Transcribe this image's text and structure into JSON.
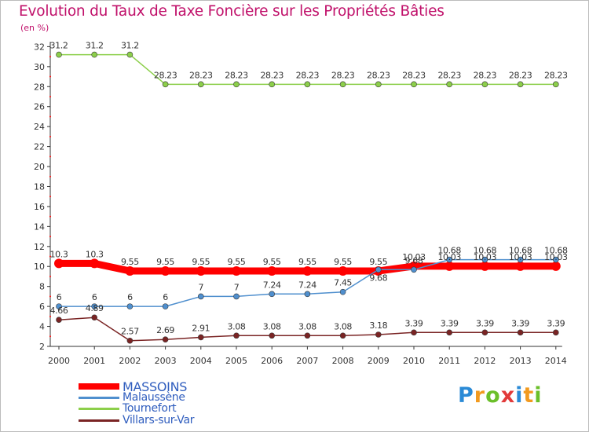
{
  "title": "Evolution du Taux de Taxe Foncière sur les Propriétés Bâties",
  "unit_label": "(en %)",
  "logo": {
    "text": "Proxiti",
    "letters": [
      "P",
      "r",
      "o",
      "x",
      "i",
      "t",
      "i"
    ],
    "colors": [
      "#2a8ad6",
      "#f29a1f",
      "#6bbf2a",
      "#e23a3a",
      "#2a8ad6",
      "#f29a1f",
      "#6bbf2a"
    ]
  },
  "chart_data": {
    "type": "line",
    "title": "Evolution du Taux de Taxe Foncière sur les Propriétés Bâties",
    "ylabel": "(en %)",
    "xlabel": "",
    "ylim": [
      2,
      32
    ],
    "yticks": [
      2,
      4,
      6,
      8,
      10,
      12,
      14,
      16,
      18,
      20,
      22,
      24,
      26,
      28,
      30,
      32
    ],
    "categories": [
      "2000",
      "2001",
      "2002",
      "2003",
      "2004",
      "2005",
      "2006",
      "2007",
      "2008",
      "2009",
      "2010",
      "2011",
      "2012",
      "2013",
      "2014"
    ],
    "grid": false,
    "legend_position": "bottom-left",
    "series": [
      {
        "name": "MASSOINS",
        "color": "#ff0000",
        "bold": true,
        "values": [
          10.3,
          10.3,
          9.55,
          9.55,
          9.55,
          9.55,
          9.55,
          9.55,
          9.55,
          9.55,
          10.03,
          10.03,
          10.03,
          10.03,
          10.03
        ],
        "labels": [
          "10.3",
          "10.3",
          "9.55",
          "9.55",
          "9.55",
          "9.55",
          "9.55",
          "9.55",
          "9.55",
          "9.55",
          "10.03",
          "10.03",
          "10.03",
          "10.03",
          "10.03"
        ]
      },
      {
        "name": "Malaussène",
        "color": "#4f8fce",
        "bold": false,
        "values": [
          6,
          6,
          6,
          6,
          7,
          7,
          7.24,
          7.24,
          7.45,
          9.68,
          9.68,
          10.68,
          10.68,
          10.68,
          10.68
        ],
        "labels": [
          "6",
          "6",
          "6",
          "6",
          "7",
          "7",
          "7.24",
          "7.24",
          "7.45",
          "9.68",
          "9.68",
          "10.68",
          "10.68",
          "10.68",
          "10.68"
        ]
      },
      {
        "name": "Tournefort",
        "color": "#8ccf4a",
        "bold": false,
        "values": [
          31.2,
          31.2,
          31.2,
          28.23,
          28.23,
          28.23,
          28.23,
          28.23,
          28.23,
          28.23,
          28.23,
          28.23,
          28.23,
          28.23,
          28.23
        ],
        "labels": [
          "31.2",
          "31.2",
          "31.2",
          "28.23",
          "28.23",
          "28.23",
          "28.23",
          "28.23",
          "28.23",
          "28.23",
          "28.23",
          "28.23",
          "28.23",
          "28.23",
          "28.23"
        ]
      },
      {
        "name": "Villars-sur-Var",
        "color": "#7a2424",
        "bold": false,
        "values": [
          4.66,
          4.89,
          2.57,
          2.69,
          2.91,
          3.08,
          3.08,
          3.08,
          3.08,
          3.18,
          3.39,
          3.39,
          3.39,
          3.39,
          3.39
        ],
        "labels": [
          "4.66",
          "4.89",
          "2.57",
          "2.69",
          "2.91",
          "3.08",
          "3.08",
          "3.08",
          "3.08",
          "3.18",
          "3.39",
          "3.39",
          "3.39",
          "3.39",
          "3.39"
        ]
      }
    ]
  }
}
